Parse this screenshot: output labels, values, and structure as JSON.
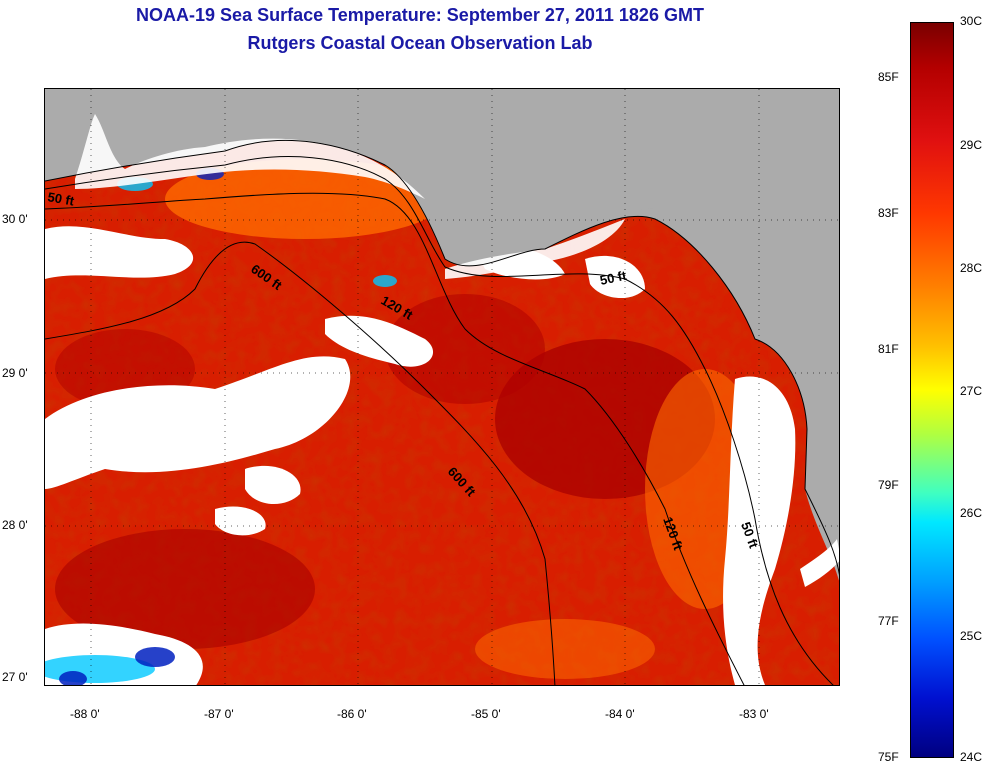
{
  "header": {
    "title": "NOAA-19 Sea Surface Temperature:  September 27, 2011 1826 GMT",
    "subtitle": "Rutgers Coastal Ocean Observation Lab"
  },
  "map": {
    "lat_labels": [
      "30 0'",
      "29 0'",
      "28 0'",
      "27 0'"
    ],
    "lon_labels": [
      "-88 0'",
      "-87 0'",
      "-86 0'",
      "-85 0'",
      "-84 0'",
      "-83 0'"
    ],
    "contour_labels": [
      "50 ft",
      "600 ft",
      "120 ft",
      "50 ft",
      "600 ft",
      "120 ft",
      "50 ft"
    ],
    "colors": {
      "land": "#ababab",
      "cloud": "#ffffff",
      "warm": "#d81e00",
      "hot": "#a80000",
      "mid": "#ff6a00",
      "cool": "#ffd000",
      "cold": "#00c8ff",
      "coldest": "#0020c0"
    }
  },
  "colorbar": {
    "fahrenheit_labels": [
      "85F",
      "83F",
      "81F",
      "79F",
      "77F",
      "75F"
    ],
    "celsius_labels": [
      "30C",
      "29C",
      "28C",
      "27C",
      "26C",
      "25C",
      "24C"
    ],
    "range_celsius": [
      24,
      30
    ]
  }
}
